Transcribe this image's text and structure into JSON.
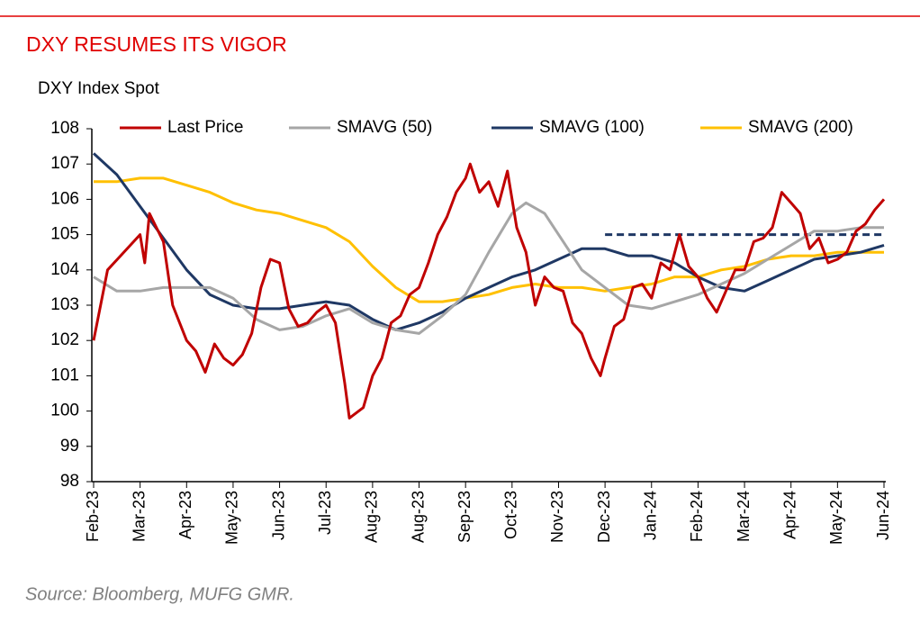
{
  "chart_data": {
    "type": "line",
    "title": "DXY RESUMES ITS VIGOR",
    "subtitle": "DXY Index Spot",
    "source": "Source: Bloomberg, MUFG GMR.",
    "xlim": [
      0,
      17
    ],
    "xticks": [
      {
        "value": 0,
        "label": "Feb-23"
      },
      {
        "value": 1,
        "label": "Mar-23"
      },
      {
        "value": 2,
        "label": "Apr-23"
      },
      {
        "value": 3,
        "label": "May-23"
      },
      {
        "value": 4,
        "label": "Jun-23"
      },
      {
        "value": 5,
        "label": "Jul-23"
      },
      {
        "value": 6,
        "label": "Aug-23"
      },
      {
        "value": 7,
        "label": "Aug-23"
      },
      {
        "value": 8,
        "label": "Sep-23"
      },
      {
        "value": 9,
        "label": "Oct-23"
      },
      {
        "value": 10,
        "label": "Nov-23"
      },
      {
        "value": 11,
        "label": "Dec-23"
      },
      {
        "value": 12,
        "label": "Jan-24"
      },
      {
        "value": 13,
        "label": "Feb-24"
      },
      {
        "value": 14,
        "label": "Mar-24"
      },
      {
        "value": 15,
        "label": "Apr-24"
      },
      {
        "value": 16,
        "label": "May-24"
      },
      {
        "value": 17,
        "label": "Jun-24"
      }
    ],
    "ylim": [
      98,
      108
    ],
    "yticks": [
      98,
      99,
      100,
      101,
      102,
      103,
      104,
      105,
      106,
      107,
      108
    ],
    "grid": false,
    "legend": "top",
    "reference_line": {
      "y": 105,
      "x": [
        11,
        17
      ],
      "color": "#1f3864",
      "dashed": true
    },
    "series": [
      {
        "name": "Last Price",
        "color": "#c00000",
        "x": [
          0,
          0.3,
          1,
          1.1,
          1.2,
          1.5,
          1.7,
          2,
          2.2,
          2.4,
          2.6,
          2.8,
          3,
          3.2,
          3.4,
          3.6,
          3.8,
          4,
          4.2,
          4.4,
          4.6,
          4.8,
          5,
          5.2,
          5.4,
          5.5,
          5.8,
          6,
          6.2,
          6.4,
          6.6,
          6.8,
          7,
          7.2,
          7.4,
          7.6,
          7.8,
          8,
          8.1,
          8.3,
          8.5,
          8.7,
          8.9,
          9.1,
          9.3,
          9.5,
          9.7,
          9.9,
          10.1,
          10.3,
          10.5,
          10.7,
          10.9,
          11,
          11.2,
          11.4,
          11.6,
          11.8,
          12,
          12.2,
          12.4,
          12.6,
          12.8,
          13,
          13.2,
          13.4,
          13.6,
          13.8,
          14,
          14.2,
          14.4,
          14.6,
          14.8,
          15,
          15.2,
          15.4,
          15.6,
          15.8,
          16,
          16.2,
          16.4,
          16.6,
          16.8,
          17
        ],
        "values": [
          102,
          104,
          105,
          104.2,
          105.6,
          104.8,
          103,
          102,
          101.7,
          101.1,
          101.9,
          101.5,
          101.3,
          101.6,
          102.2,
          103.5,
          104.3,
          104.2,
          102.9,
          102.4,
          102.5,
          102.8,
          103,
          102.5,
          100.8,
          99.8,
          100.1,
          101,
          101.5,
          102.5,
          102.7,
          103.3,
          103.5,
          104.2,
          105,
          105.5,
          106.2,
          106.6,
          107,
          106.2,
          106.5,
          105.8,
          106.8,
          105.2,
          104.5,
          103,
          103.8,
          103.5,
          103.4,
          102.5,
          102.2,
          101.5,
          101,
          101.5,
          102.4,
          102.6,
          103.5,
          103.6,
          103.2,
          104.2,
          104,
          105,
          104.1,
          103.8,
          103.2,
          102.8,
          103.4,
          104,
          104,
          104.8,
          104.9,
          105.2,
          106.2,
          105.9,
          105.6,
          104.6,
          104.9,
          104.2,
          104.3,
          104.5,
          105.1,
          105.3,
          105.7,
          106
        ]
      },
      {
        "name": "SMAVG (50)",
        "color": "#a6a6a6",
        "x": [
          0,
          0.5,
          1,
          1.5,
          2,
          2.5,
          3,
          3.5,
          4,
          4.5,
          5,
          5.5,
          6,
          6.5,
          7,
          7.5,
          8,
          8.5,
          9,
          9.3,
          9.7,
          10,
          10.5,
          11,
          11.5,
          12,
          12.5,
          13,
          13.5,
          14,
          14.5,
          15,
          15.5,
          16,
          16.5,
          17
        ],
        "values": [
          103.8,
          103.4,
          103.4,
          103.5,
          103.5,
          103.5,
          103.2,
          102.6,
          102.3,
          102.4,
          102.7,
          102.9,
          102.5,
          102.3,
          102.2,
          102.7,
          103.3,
          104.5,
          105.6,
          105.9,
          105.6,
          105,
          104,
          103.5,
          103,
          102.9,
          103.1,
          103.3,
          103.6,
          103.9,
          104.3,
          104.7,
          105.1,
          105.1,
          105.2,
          105.2
        ]
      },
      {
        "name": "SMAVG (100)",
        "color": "#1f3864",
        "x": [
          0,
          0.5,
          1,
          1.5,
          2,
          2.5,
          3,
          3.5,
          4,
          4.5,
          5,
          5.5,
          6,
          6.5,
          7,
          7.5,
          8,
          8.5,
          9,
          9.5,
          10,
          10.5,
          11,
          11.5,
          12,
          12.5,
          13,
          13.5,
          14,
          14.5,
          15,
          15.5,
          16,
          16.5,
          17
        ],
        "values": [
          107.3,
          106.7,
          105.8,
          104.9,
          104,
          103.3,
          103,
          102.9,
          102.9,
          103,
          103.1,
          103,
          102.6,
          102.3,
          102.5,
          102.8,
          103.2,
          103.5,
          103.8,
          104,
          104.3,
          104.6,
          104.6,
          104.4,
          104.4,
          104.2,
          103.8,
          103.5,
          103.4,
          103.7,
          104,
          104.3,
          104.4,
          104.5,
          104.7
        ]
      },
      {
        "name": "SMAVG (200)",
        "color": "#ffc000",
        "x": [
          0,
          0.5,
          1,
          1.5,
          2,
          2.5,
          3,
          3.5,
          4,
          4.5,
          5,
          5.5,
          6,
          6.5,
          7,
          7.5,
          8,
          8.5,
          9,
          9.5,
          10,
          10.5,
          11,
          11.5,
          12,
          12.5,
          13,
          13.5,
          14,
          14.5,
          15,
          15.5,
          16,
          16.5,
          17
        ],
        "values": [
          106.5,
          106.5,
          106.6,
          106.6,
          106.4,
          106.2,
          105.9,
          105.7,
          105.6,
          105.4,
          105.2,
          104.8,
          104.1,
          103.5,
          103.1,
          103.1,
          103.2,
          103.3,
          103.5,
          103.6,
          103.5,
          103.5,
          103.4,
          103.5,
          103.6,
          103.8,
          103.8,
          104,
          104.1,
          104.3,
          104.4,
          104.4,
          104.5,
          104.5,
          104.5
        ]
      }
    ]
  }
}
